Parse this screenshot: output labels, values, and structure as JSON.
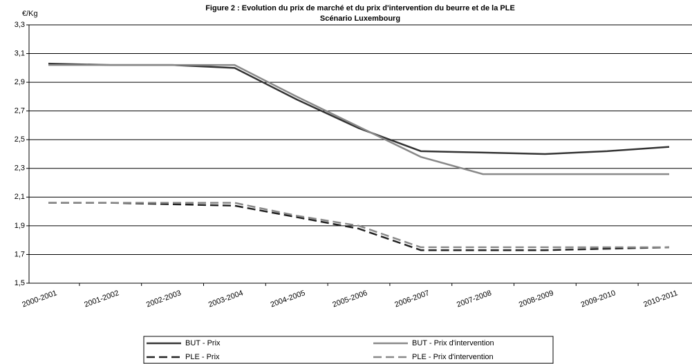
{
  "chart_data": {
    "type": "line",
    "title": "Figure 2  : Evolution du prix de marché et du prix d'intervention du beurre et de la PLE",
    "subtitle": "Scénario Luxembourg",
    "y_label": "€/Kg",
    "categories": [
      "2000-2001",
      "2001-2002",
      "2002-2003",
      "2003-2004",
      "2004-2005",
      "2005-2006",
      "2006-2007",
      "2007-2008",
      "2008-2009",
      "2009-2010",
      "2010-2011"
    ],
    "series": [
      {
        "name": "BUT - Prix",
        "color": "#333333",
        "style": "solid",
        "values": [
          3.03,
          3.02,
          3.02,
          3.0,
          2.78,
          2.58,
          2.42,
          2.41,
          2.4,
          2.42,
          2.45
        ]
      },
      {
        "name": "BUT - Prix d'intervention",
        "color": "#888888",
        "style": "solid",
        "values": [
          3.02,
          3.02,
          3.02,
          3.02,
          2.8,
          2.59,
          2.38,
          2.26,
          2.26,
          2.26,
          2.26
        ]
      },
      {
        "name": "PLE - Prix",
        "color": "#222222",
        "style": "dashed",
        "values": [
          2.06,
          2.06,
          2.05,
          2.04,
          1.96,
          1.88,
          1.73,
          1.73,
          1.73,
          1.74,
          1.75
        ]
      },
      {
        "name": "PLE - Prix d'intervention",
        "color": "#888888",
        "style": "dashed",
        "values": [
          2.06,
          2.06,
          2.06,
          2.06,
          1.97,
          1.9,
          1.75,
          1.75,
          1.75,
          1.75,
          1.75
        ]
      }
    ],
    "ylim": [
      1.5,
      3.3
    ],
    "yticks": [
      {
        "value": 1.5,
        "label": "1,5"
      },
      {
        "value": 1.7,
        "label": "1,7"
      },
      {
        "value": 1.9,
        "label": "1,9"
      },
      {
        "value": 2.1,
        "label": "2,1"
      },
      {
        "value": 2.3,
        "label": "2,3"
      },
      {
        "value": 2.5,
        "label": "2,5"
      },
      {
        "value": 2.7,
        "label": "2,7"
      },
      {
        "value": 2.9,
        "label": "2,9"
      },
      {
        "value": 3.1,
        "label": "3,1"
      },
      {
        "value": 3.3,
        "label": "3,3"
      }
    ],
    "grid": true,
    "legend": "bottom"
  }
}
